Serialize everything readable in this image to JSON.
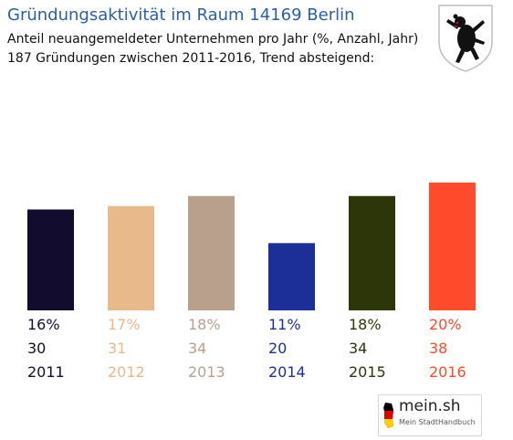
{
  "header": {
    "title": "Gründungsaktivität im Raum 14169 Berlin",
    "subtitle_line1": "Anteil neuangemeldeter Unternehmen pro Jahr (%, Anzahl, Jahr)",
    "subtitle_line2": "187 Gründungen zwischen 2011-2016, Trend absteigend:"
  },
  "crest": {
    "icon": "berlin-bear-crest-icon"
  },
  "brand": {
    "logo_text": "mein.sh",
    "tagline": "Mein StadtHandbuch",
    "icon": "germany-map-icon"
  },
  "chart_data": {
    "type": "bar",
    "categories": [
      "2011",
      "2012",
      "2013",
      "2014",
      "2015",
      "2016"
    ],
    "percent_labels": [
      "16%",
      "17%",
      "18%",
      "11%",
      "18%",
      "20%"
    ],
    "count_labels": [
      "30",
      "31",
      "34",
      "20",
      "34",
      "38"
    ],
    "values": [
      30,
      31,
      34,
      20,
      34,
      38
    ],
    "colors": [
      "#120c2e",
      "#e8b98a",
      "#b9a08d",
      "#1c2e98",
      "#2c3609",
      "#ff4a2c"
    ],
    "title": "Gründungsaktivität im Raum 14169 Berlin",
    "ylim": [
      0,
      38
    ],
    "grid": false,
    "legend": "none"
  }
}
